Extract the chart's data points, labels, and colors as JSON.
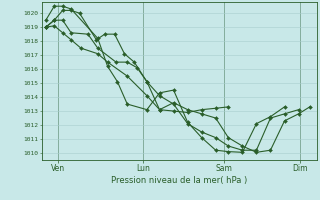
{
  "xlabel": "Pression niveau de la mer( hPa )",
  "bg_color": "#c8e8e8",
  "line_color": "#2a5e2a",
  "grid_color": "#a8cece",
  "ylim": [
    1009.5,
    1020.8
  ],
  "xlim": [
    -0.1,
    9.7
  ],
  "xtick_labels": [
    "Ven",
    "Lun",
    "Sam",
    "Dim"
  ],
  "xtick_positions": [
    0.5,
    3.5,
    6.4,
    9.1
  ],
  "ytick_start": 1010,
  "ytick_end": 1020,
  "series": [
    {
      "x": [
        0.05,
        0.35,
        0.65,
        0.95,
        1.25,
        1.85,
        2.15,
        2.5,
        2.85,
        3.2,
        3.65,
        4.1,
        4.6,
        5.1,
        5.6,
        6.1,
        6.55
      ],
      "y": [
        1019.0,
        1019.5,
        1020.2,
        1020.2,
        1020.0,
        1018.1,
        1018.5,
        1018.5,
        1017.1,
        1016.5,
        1015.1,
        1013.1,
        1013.0,
        1012.9,
        1013.1,
        1013.2,
        1013.3
      ]
    },
    {
      "x": [
        0.05,
        0.35,
        0.65,
        0.95,
        1.9,
        2.25,
        2.6,
        2.95,
        3.65,
        4.1,
        4.6,
        5.1,
        5.6,
        6.1,
        6.55,
        7.05,
        7.55,
        8.05,
        8.55
      ],
      "y": [
        1019.5,
        1020.5,
        1020.5,
        1020.3,
        1018.2,
        1016.2,
        1015.1,
        1013.5,
        1013.1,
        1014.3,
        1014.5,
        1012.2,
        1011.1,
        1010.2,
        1010.1,
        1010.05,
        1012.1,
        1012.6,
        1013.3
      ]
    },
    {
      "x": [
        0.05,
        0.35,
        0.65,
        0.95,
        1.3,
        1.9,
        2.25,
        2.95,
        3.65,
        4.1,
        4.6,
        5.1,
        5.6,
        6.1,
        6.55,
        7.05,
        7.55,
        8.05,
        8.55,
        9.05,
        9.45
      ],
      "y": [
        1019.0,
        1019.1,
        1018.6,
        1018.1,
        1017.5,
        1017.1,
        1016.5,
        1015.5,
        1014.1,
        1013.1,
        1013.6,
        1013.1,
        1012.8,
        1012.5,
        1011.1,
        1010.5,
        1010.05,
        1010.2,
        1012.3,
        1012.8,
        1013.3
      ]
    },
    {
      "x": [
        0.05,
        0.35,
        0.65,
        0.95,
        1.55,
        1.9,
        2.55,
        2.95,
        3.3,
        3.65,
        4.1,
        4.6,
        5.1,
        5.6,
        6.1,
        6.55,
        7.05,
        7.55,
        8.05,
        8.55,
        9.05
      ],
      "y": [
        1019.0,
        1019.5,
        1019.5,
        1018.6,
        1018.5,
        1017.5,
        1016.5,
        1016.5,
        1016.1,
        1015.1,
        1014.1,
        1013.5,
        1012.1,
        1011.5,
        1011.1,
        1010.5,
        1010.2,
        1010.2,
        1012.5,
        1012.8,
        1013.1
      ]
    }
  ]
}
